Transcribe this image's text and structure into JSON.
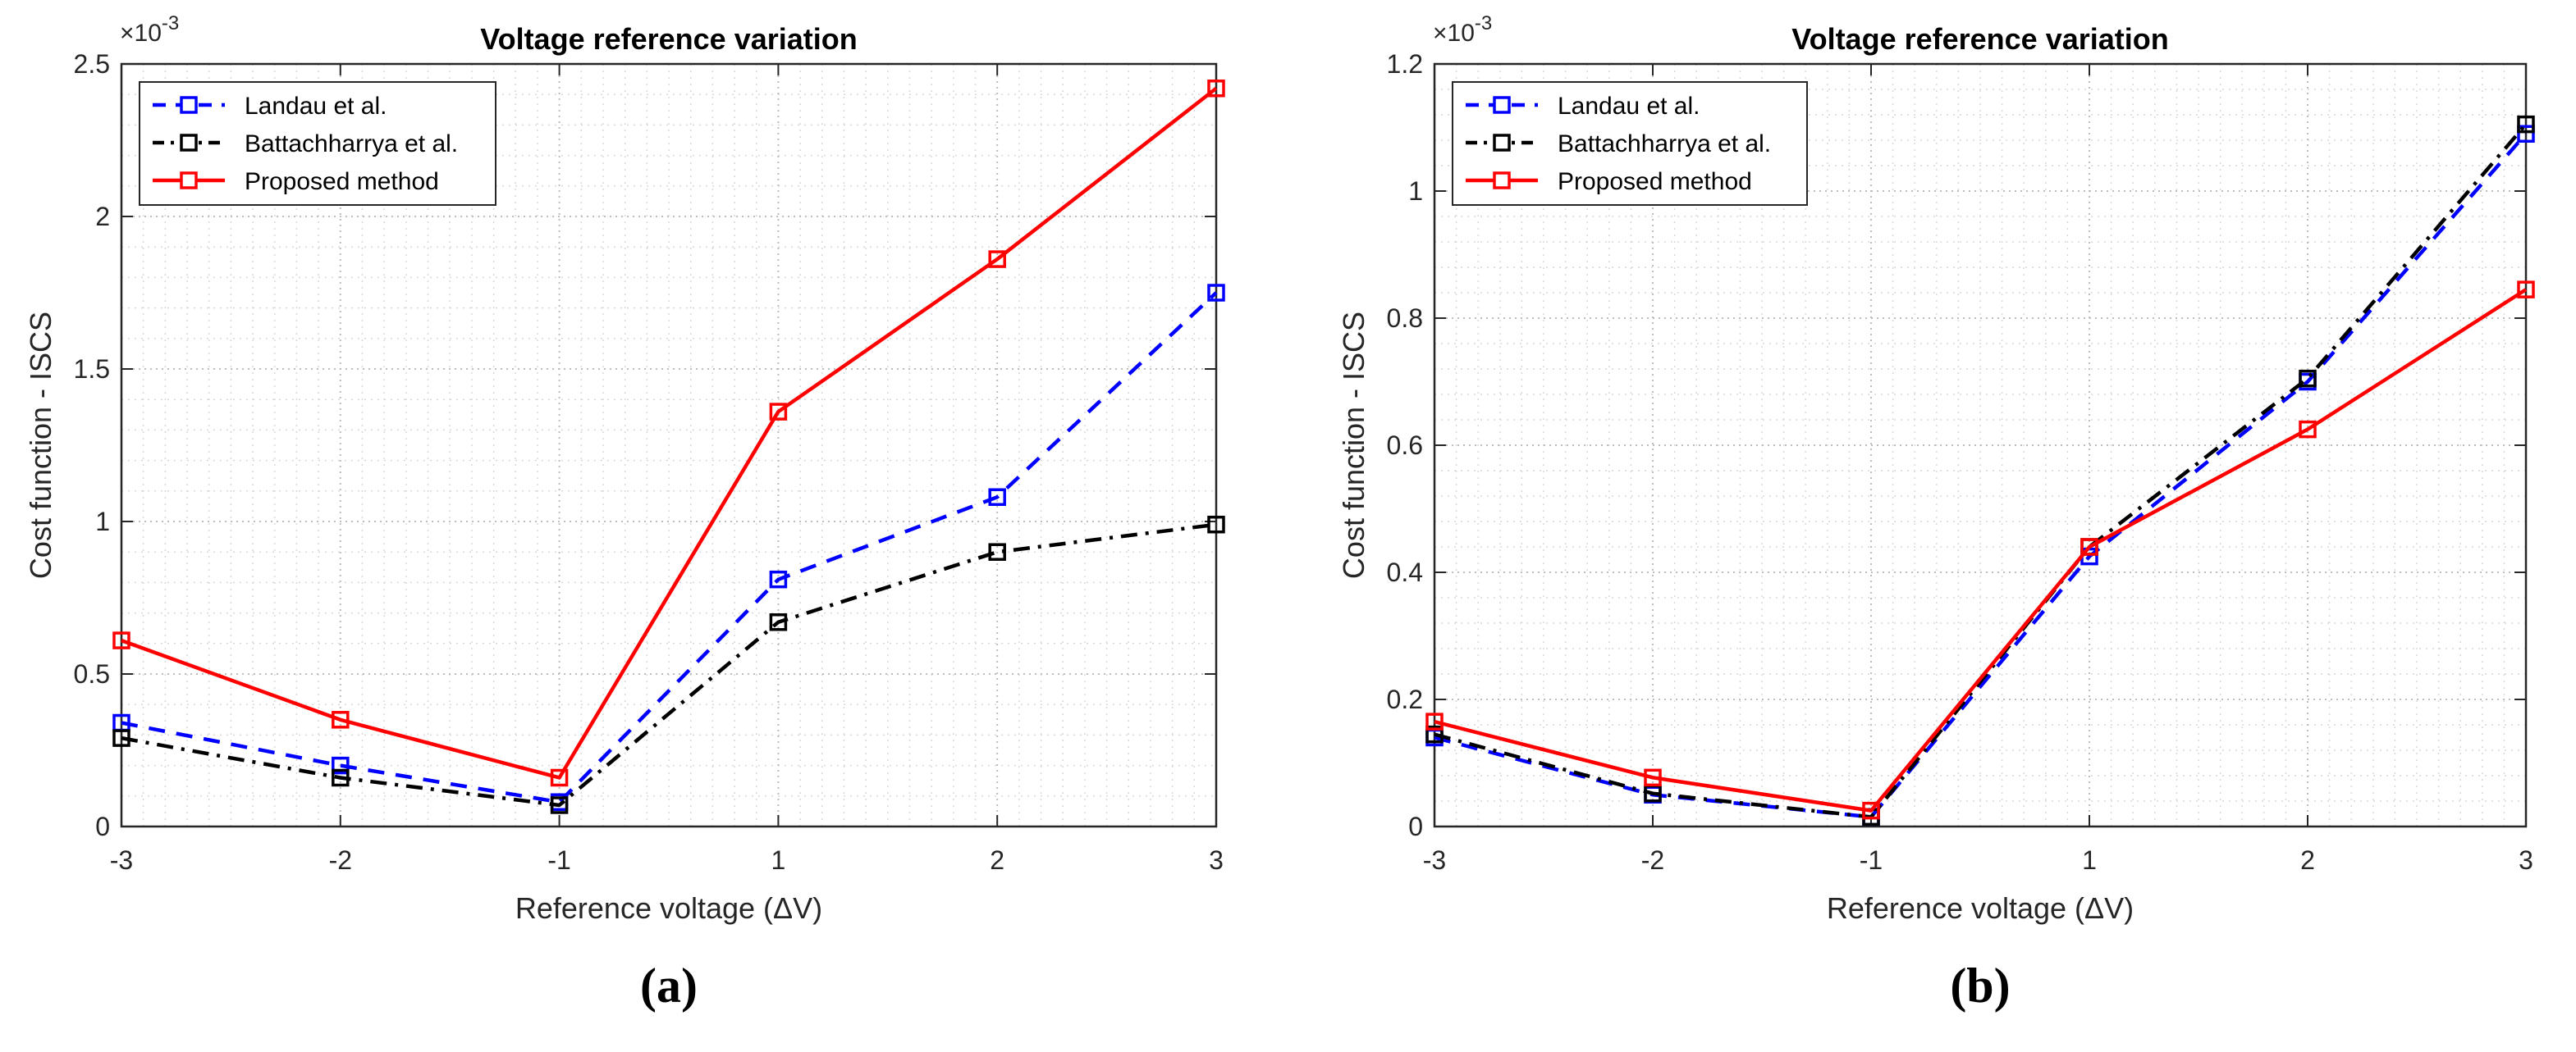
{
  "chart_data": [
    {
      "type": "line",
      "title": "Voltage reference variation",
      "xlabel": "Reference voltage (ΔV)",
      "ylabel": "Cost function - ISCS",
      "exponent_label": "×10",
      "exponent_power": "-3",
      "panel_label": "(a)",
      "x": [
        -3,
        -2,
        -1,
        1,
        2,
        3
      ],
      "xtick_labels": [
        "-3",
        "-2",
        "-1",
        "1",
        "2",
        "3"
      ],
      "ylim": [
        0,
        2.5
      ],
      "ytick_values": [
        0,
        0.5,
        1,
        1.5,
        2,
        2.5
      ],
      "ytick_labels": [
        "0",
        "0.5",
        "1",
        "1.5",
        "2",
        "2.5"
      ],
      "grid": true,
      "minor_grid": true,
      "legend_position": "top-left",
      "series": [
        {
          "name": "Landau et al.",
          "color": "#0000ff",
          "dash": "dashed",
          "marker": "square",
          "values": [
            0.34,
            0.2,
            0.08,
            0.81,
            1.08,
            1.75
          ]
        },
        {
          "name": "Battachharrya et al.",
          "color": "#000000",
          "dash": "dashdot",
          "marker": "square",
          "values": [
            0.29,
            0.16,
            0.07,
            0.67,
            0.9,
            0.99
          ]
        },
        {
          "name": "Proposed method",
          "color": "#ff0000",
          "dash": "solid",
          "marker": "square",
          "values": [
            0.61,
            0.35,
            0.16,
            1.36,
            1.86,
            2.42
          ]
        }
      ]
    },
    {
      "type": "line",
      "title": "Voltage reference variation",
      "xlabel": "Reference voltage (ΔV)",
      "ylabel": "Cost function - ISCS",
      "exponent_label": "×10",
      "exponent_power": "-3",
      "panel_label": "(b)",
      "x": [
        -3,
        -2,
        -1,
        1,
        2,
        3
      ],
      "xtick_labels": [
        "-3",
        "-2",
        "-1",
        "1",
        "2",
        "3"
      ],
      "ylim": [
        0,
        1.2
      ],
      "ytick_values": [
        0,
        0.2,
        0.4,
        0.6,
        0.8,
        1,
        1.2
      ],
      "ytick_labels": [
        "0",
        "0.2",
        "0.4",
        "0.6",
        "0.8",
        "1",
        "1.2"
      ],
      "grid": true,
      "minor_grid": true,
      "legend_position": "top-left",
      "series": [
        {
          "name": "Landau et al.",
          "color": "#0000ff",
          "dash": "dashed",
          "marker": "square",
          "values": [
            0.14,
            0.05,
            0.015,
            0.425,
            0.7,
            1.09
          ]
        },
        {
          "name": "Battachharrya et al.",
          "color": "#000000",
          "dash": "dashdot",
          "marker": "square",
          "values": [
            0.145,
            0.052,
            0.015,
            0.44,
            0.705,
            1.105
          ]
        },
        {
          "name": "Proposed method",
          "color": "#ff0000",
          "dash": "solid",
          "marker": "square",
          "values": [
            0.165,
            0.077,
            0.025,
            0.44,
            0.625,
            0.845
          ]
        }
      ]
    }
  ]
}
